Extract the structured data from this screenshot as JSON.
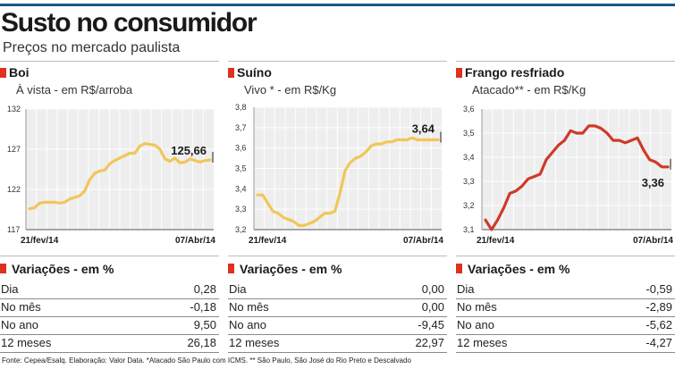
{
  "header": {
    "title": "Susto no consumidor",
    "subtitle": "Preços no mercado paulista"
  },
  "colors": {
    "topline": "#1a5a82",
    "accent": "#e0301e",
    "line_gold": "#f1c65a",
    "line_red": "#cf3a2b",
    "plot_bg": "#eeeeee",
    "grid": "#ffffff",
    "divider": "#bdbdbd"
  },
  "chart_data": [
    {
      "type": "line",
      "title": "Boi",
      "unit": "À vista - em R$/arroba",
      "ylim": [
        117,
        132
      ],
      "yticks": [
        "132",
        "127",
        "122",
        "117"
      ],
      "ytick_values": [
        132,
        127,
        122,
        117
      ],
      "x_start_label": "21/fev/14",
      "x_end_label": "07/Abr/14",
      "end_label": "125,66",
      "values": [
        119.6,
        119.7,
        120.3,
        120.4,
        120.4,
        120.4,
        120.3,
        120.4,
        120.8,
        121.0,
        121.2,
        121.8,
        123.2,
        124.0,
        124.3,
        124.4,
        125.2,
        125.6,
        125.9,
        126.2,
        126.5,
        126.5,
        127.4,
        127.7,
        127.6,
        127.5,
        127.0,
        125.8,
        125.5,
        125.9,
        125.3,
        125.4,
        125.8,
        125.6,
        125.4,
        125.6,
        125.66
      ]
    },
    {
      "type": "line",
      "title": "Suíno",
      "unit": "Vivo * - em R$/Kg",
      "ylim": [
        3.2,
        3.8
      ],
      "yticks": [
        "3,8",
        "3,7",
        "3,6",
        "3,5",
        "3,4",
        "3,3",
        "3,2"
      ],
      "ytick_values": [
        3.8,
        3.7,
        3.6,
        3.5,
        3.4,
        3.3,
        3.2
      ],
      "x_start_label": "21/fev/14",
      "x_end_label": "07/Abr/14",
      "end_label": "3,64",
      "values": [
        3.37,
        3.37,
        3.33,
        3.29,
        3.28,
        3.26,
        3.25,
        3.24,
        3.22,
        3.22,
        3.23,
        3.24,
        3.26,
        3.28,
        3.28,
        3.29,
        3.38,
        3.49,
        3.53,
        3.55,
        3.56,
        3.58,
        3.61,
        3.62,
        3.62,
        3.63,
        3.63,
        3.64,
        3.64,
        3.64,
        3.65,
        3.64,
        3.64,
        3.64,
        3.64,
        3.64
      ]
    },
    {
      "type": "line",
      "title": "Frango resfriado",
      "unit": "Atacado** - em R$/Kg",
      "ylim": [
        3.1,
        3.6
      ],
      "yticks": [
        "3,6",
        "3,5",
        "3,4",
        "3,3",
        "3,2",
        "3,1"
      ],
      "ytick_values": [
        3.6,
        3.5,
        3.4,
        3.3,
        3.2,
        3.1
      ],
      "x_start_label": "21/fev/14",
      "x_end_label": "07/Abr/14",
      "end_label": "3,36",
      "values": [
        3.14,
        3.1,
        3.14,
        3.19,
        3.25,
        3.26,
        3.28,
        3.31,
        3.32,
        3.33,
        3.39,
        3.42,
        3.45,
        3.47,
        3.51,
        3.5,
        3.5,
        3.53,
        3.53,
        3.52,
        3.5,
        3.47,
        3.47,
        3.46,
        3.47,
        3.48,
        3.43,
        3.39,
        3.38,
        3.36,
        3.36
      ]
    }
  ],
  "variations": [
    {
      "title": "Variações - em %",
      "rows": [
        {
          "label": "Dia",
          "value": "0,28"
        },
        {
          "label": "No mês",
          "value": "-0,18"
        },
        {
          "label": "No ano",
          "value": "9,50"
        },
        {
          "label": "12 meses",
          "value": "26,18"
        }
      ]
    },
    {
      "title": "Variações - em %",
      "rows": [
        {
          "label": "Dia",
          "value": "0,00"
        },
        {
          "label": "No mês",
          "value": "0,00"
        },
        {
          "label": "No ano",
          "value": "-9,45"
        },
        {
          "label": "12 meses",
          "value": "22,97"
        }
      ]
    },
    {
      "title": "Variações - em %",
      "rows": [
        {
          "label": "Dia",
          "value": "-0,59"
        },
        {
          "label": "No mês",
          "value": "-2,89"
        },
        {
          "label": "No ano",
          "value": "-5,62"
        },
        {
          "label": "12 meses",
          "value": "-4,27"
        }
      ]
    }
  ],
  "footer": {
    "source": "Fonte: Cepea/Esalq. Elaboração: Valor Data. *Atacado São Paulo com ICMS. ** São Paulo, São José do Rio Preto e Descalvado"
  }
}
